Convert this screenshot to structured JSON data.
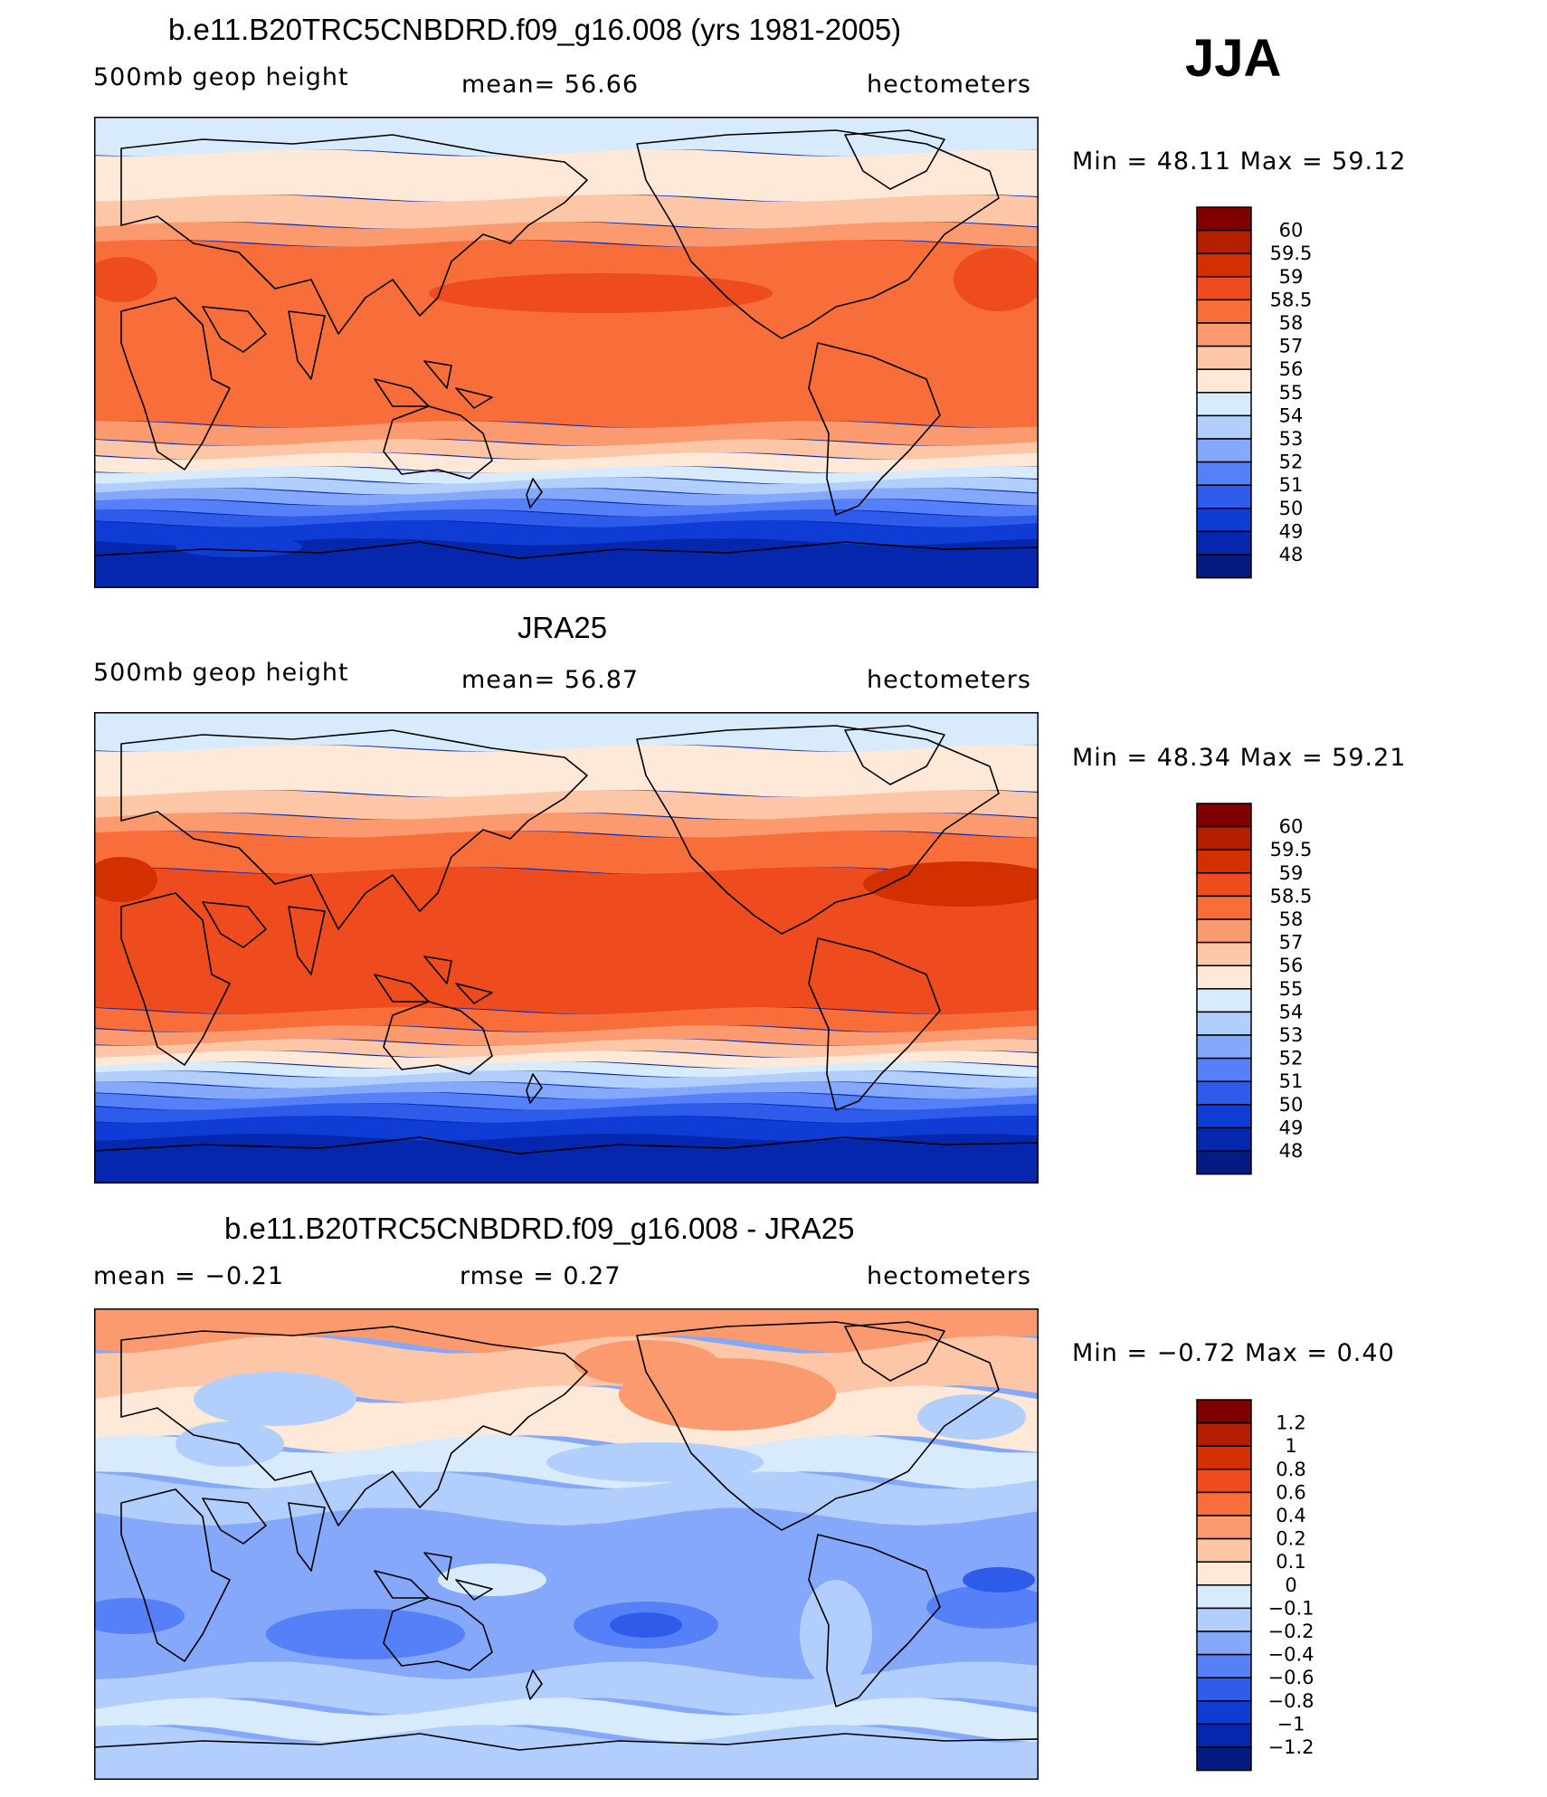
{
  "season": "JJA",
  "panels": [
    {
      "title": "b.e11.B20TRC5CNBDRD.f09_g16.008 (yrs 1981-2005)",
      "left_text": "500mb geop height",
      "mid_text": "mean=  56.66",
      "right_text": "hectometers",
      "minmax": "Min =   48.11  Max =    59.12",
      "legend_labels": [
        "60",
        "59.5",
        "59",
        "58.5",
        "58",
        "57",
        "56",
        "55",
        "54",
        "53",
        "52",
        "51",
        "50",
        "49",
        "48"
      ],
      "legend_colors": [
        "#800000",
        "#b31e00",
        "#d33000",
        "#ee4c1e",
        "#f76e3b",
        "#fa9a6e",
        "#fdc6a6",
        "#fee8d7",
        "#d7ebfc",
        "#b1cefc",
        "#85a8fa",
        "#5580f7",
        "#2f5bea",
        "#0f3cd4",
        "#0427ae",
        "#061b82"
      ]
    },
    {
      "title": "JRA25",
      "left_text": "500mb geop height",
      "mid_text": "mean=  56.87",
      "right_text": "hectometers",
      "minmax": "Min =   48.34  Max =    59.21",
      "legend_labels": [
        "60",
        "59.5",
        "59",
        "58.5",
        "58",
        "57",
        "56",
        "55",
        "54",
        "53",
        "52",
        "51",
        "50",
        "49",
        "48"
      ],
      "legend_colors": [
        "#800000",
        "#b31e00",
        "#d33000",
        "#ee4c1e",
        "#f76e3b",
        "#fa9a6e",
        "#fdc6a6",
        "#fee8d7",
        "#d7ebfc",
        "#b1cefc",
        "#85a8fa",
        "#5580f7",
        "#2f5bea",
        "#0f3cd4",
        "#0427ae",
        "#061b82"
      ]
    },
    {
      "title": "b.e11.B20TRC5CNBDRD.f09_g16.008 - JRA25",
      "left_text": "mean =   −0.21",
      "mid_text": "rmse =    0.27",
      "right_text": "hectometers",
      "minmax": "Min =   −0.72  Max =     0.40",
      "legend_labels": [
        "1.2",
        "1",
        "0.8",
        "0.6",
        "0.4",
        "0.2",
        "0.1",
        "0",
        "−0.1",
        "−0.2",
        "−0.4",
        "−0.6",
        "−0.8",
        "−1",
        "−1.2"
      ],
      "legend_colors": [
        "#800000",
        "#b31e00",
        "#d33000",
        "#ee4c1e",
        "#f76e3b",
        "#fa9a6e",
        "#fdc6a6",
        "#fee8d7",
        "#d7ebfc",
        "#b1cefc",
        "#85a8fa",
        "#5580f7",
        "#2f5bea",
        "#0f3cd4",
        "#0427ae",
        "#061b82"
      ]
    }
  ]
}
